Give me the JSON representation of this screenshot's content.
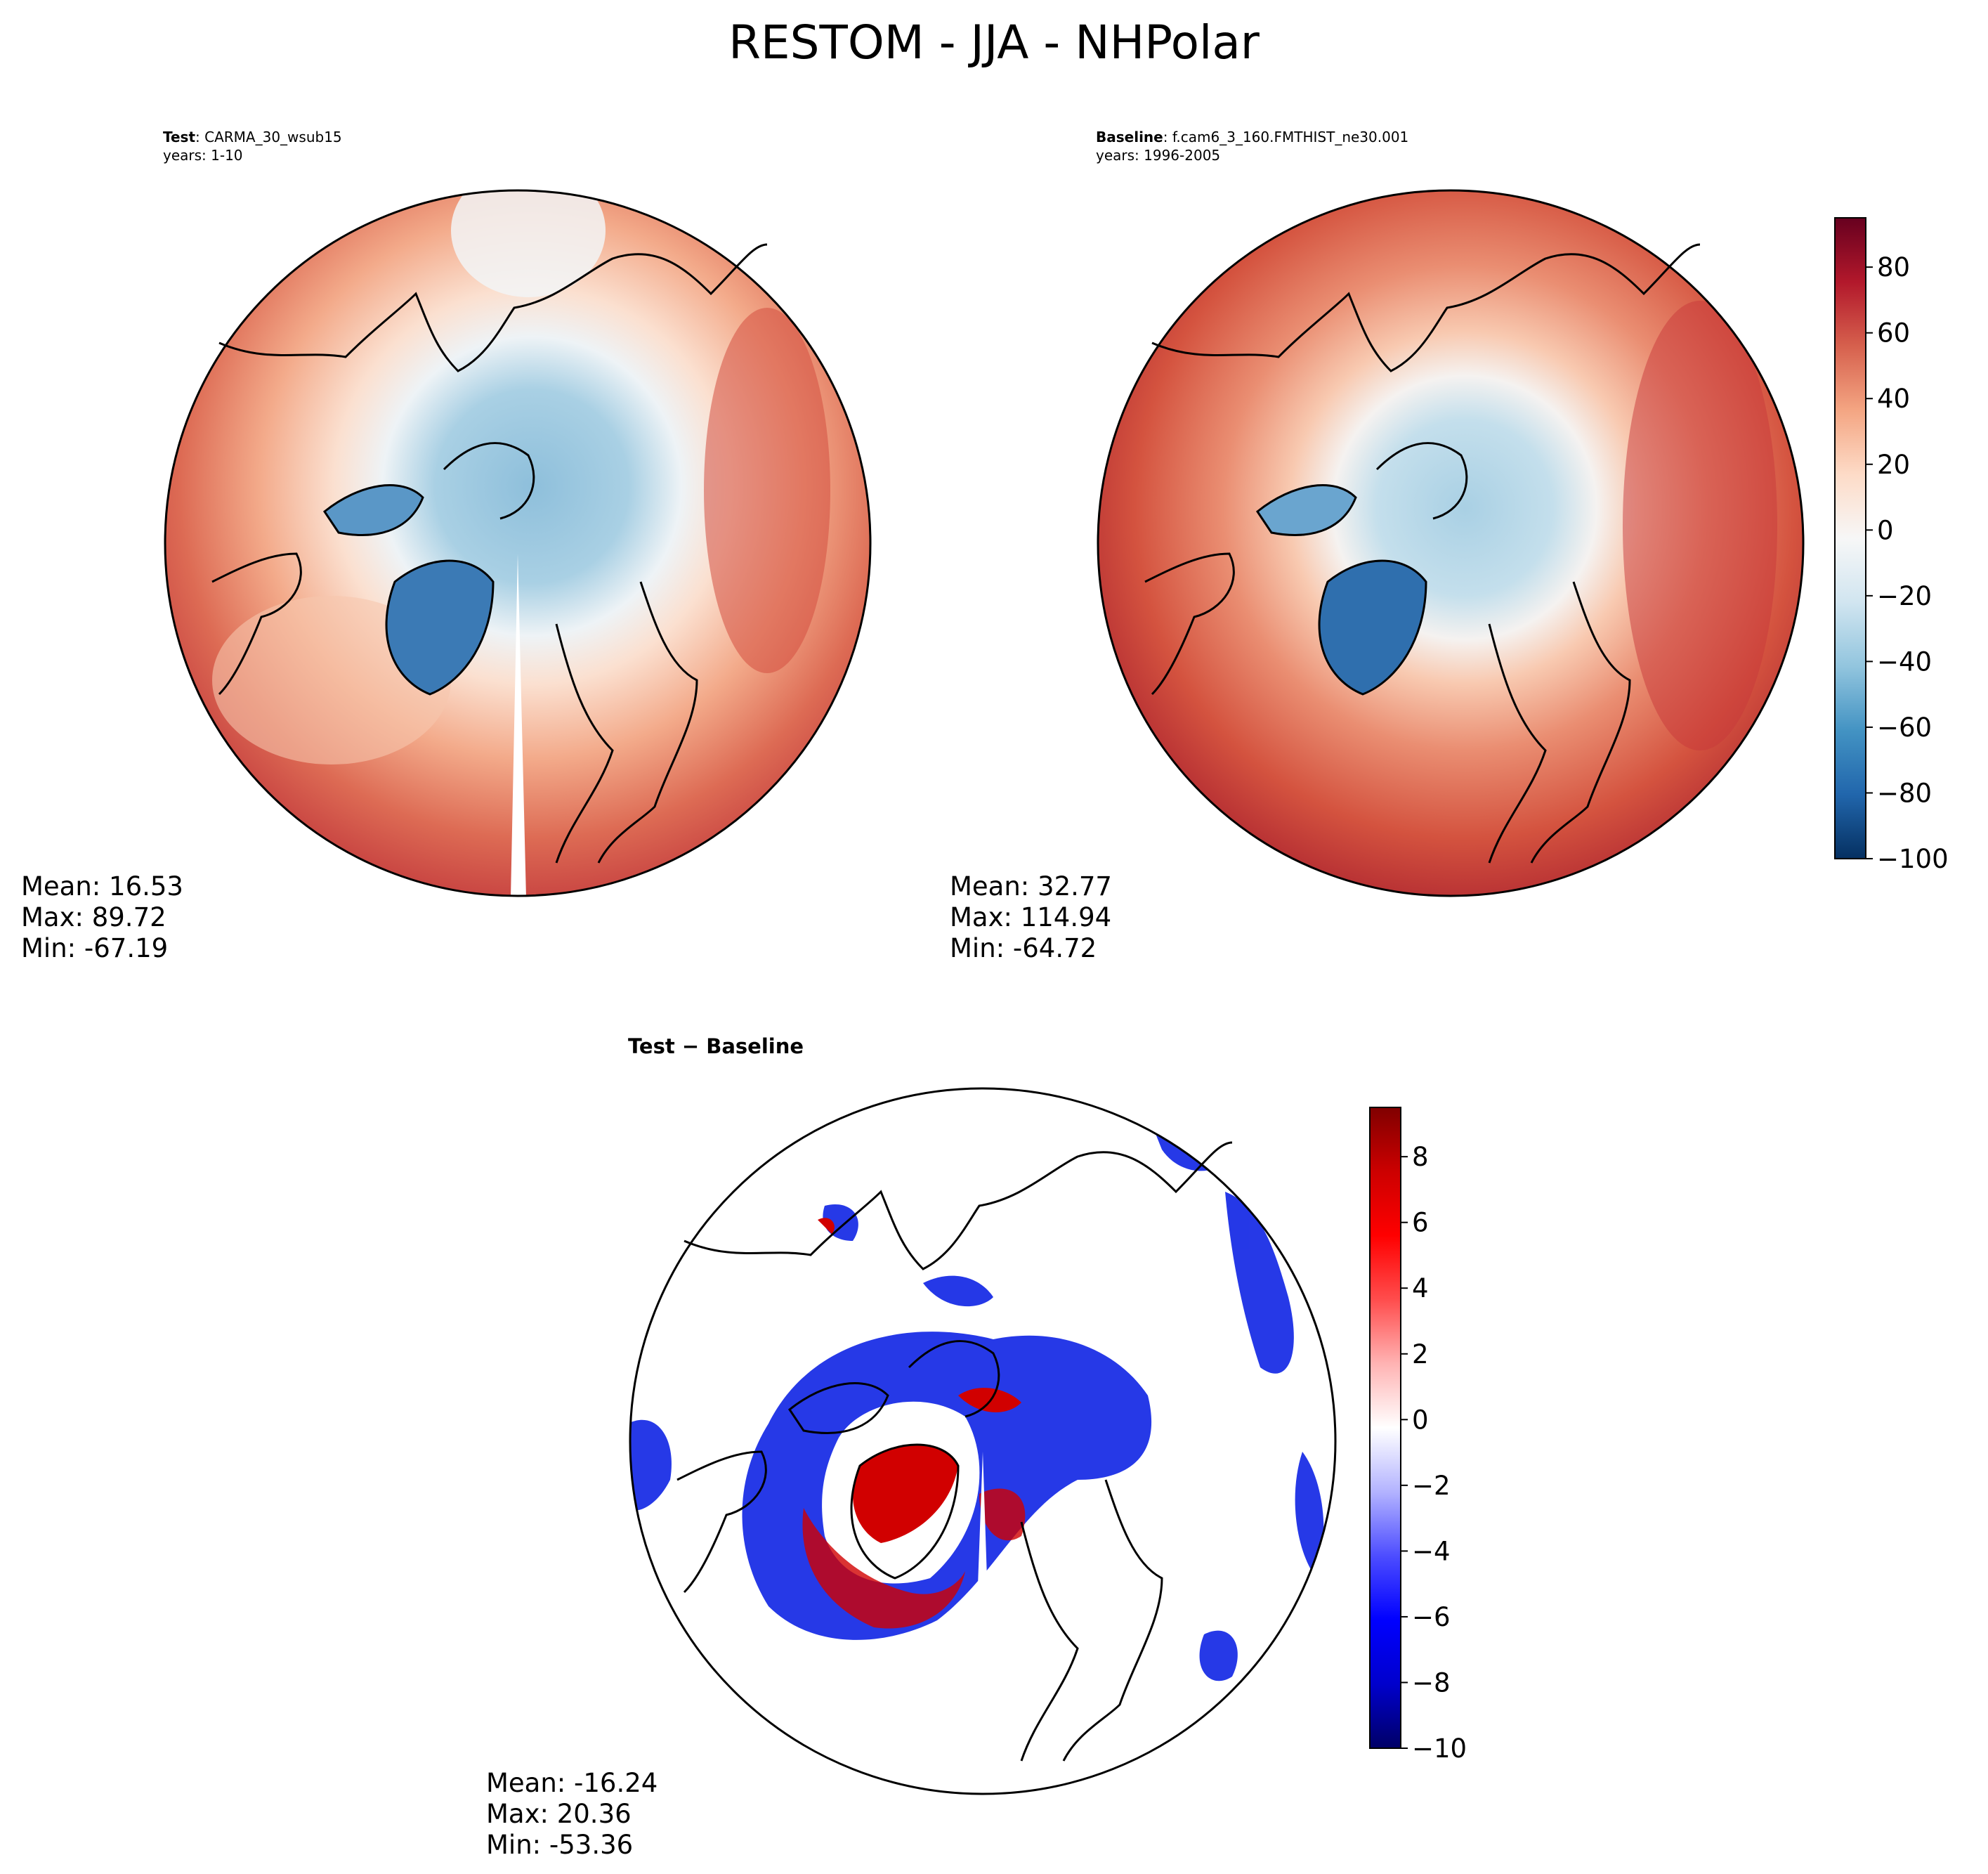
{
  "title": "RESTOM - JJA - NHPolar",
  "test": {
    "label_bold": "Test",
    "label_rest": ": CARMA_30_wsub15",
    "years": "years: 1-10",
    "stats": {
      "mean": "Mean: 16.53",
      "max": "Max: 89.72",
      "min": "Min: -67.19"
    }
  },
  "baseline": {
    "label_bold": "Baseline",
    "label_rest": ": f.cam6_3_160.FMTHIST_ne30.001",
    "years": "years: 1996-2005",
    "stats": {
      "mean": "Mean: 32.77",
      "max": "Max: 114.94",
      "min": "Min: -64.72"
    }
  },
  "diff": {
    "title_a": "Test",
    "title_op": " − ",
    "title_b": "Baseline",
    "stats": {
      "mean": "Mean: -16.24",
      "max": "Max: 20.36",
      "min": "Min: -53.36"
    }
  },
  "colorbar_main": {
    "min": -100,
    "max": 95,
    "tick_values": [
      -100,
      -80,
      -60,
      -40,
      -20,
      0,
      20,
      40,
      60,
      80
    ],
    "tick_labels": [
      "−100",
      "−80",
      "−60",
      "−40",
      "−20",
      "0",
      "20",
      "40",
      "60",
      "80"
    ],
    "colors": [
      "#053061",
      "#2166ac",
      "#4393c3",
      "#92c5de",
      "#d1e5f0",
      "#f7f7f7",
      "#fddbc7",
      "#f4a582",
      "#d6604d",
      "#b2182b",
      "#67001f"
    ]
  },
  "colorbar_diff": {
    "min": -10,
    "max": 9.5,
    "tick_values": [
      -10,
      -8,
      -6,
      -4,
      -2,
      0,
      2,
      4,
      6,
      8
    ],
    "tick_labels": [
      "−10",
      "−8",
      "−6",
      "−4",
      "−2",
      "0",
      "2",
      "4",
      "6",
      "8"
    ],
    "colors": [
      "#000066",
      "#0000cc",
      "#0000ff",
      "#4d4dff",
      "#b3b3ff",
      "#ffffff",
      "#ffb3b3",
      "#ff4d4d",
      "#ff0000",
      "#cc0000",
      "#800000"
    ]
  },
  "colors": {
    "land_outline": "#000000",
    "ocean_warm": "#d6604d",
    "ice_cold": "#92c5de",
    "greenland_cold": "#3b7ab5"
  }
}
